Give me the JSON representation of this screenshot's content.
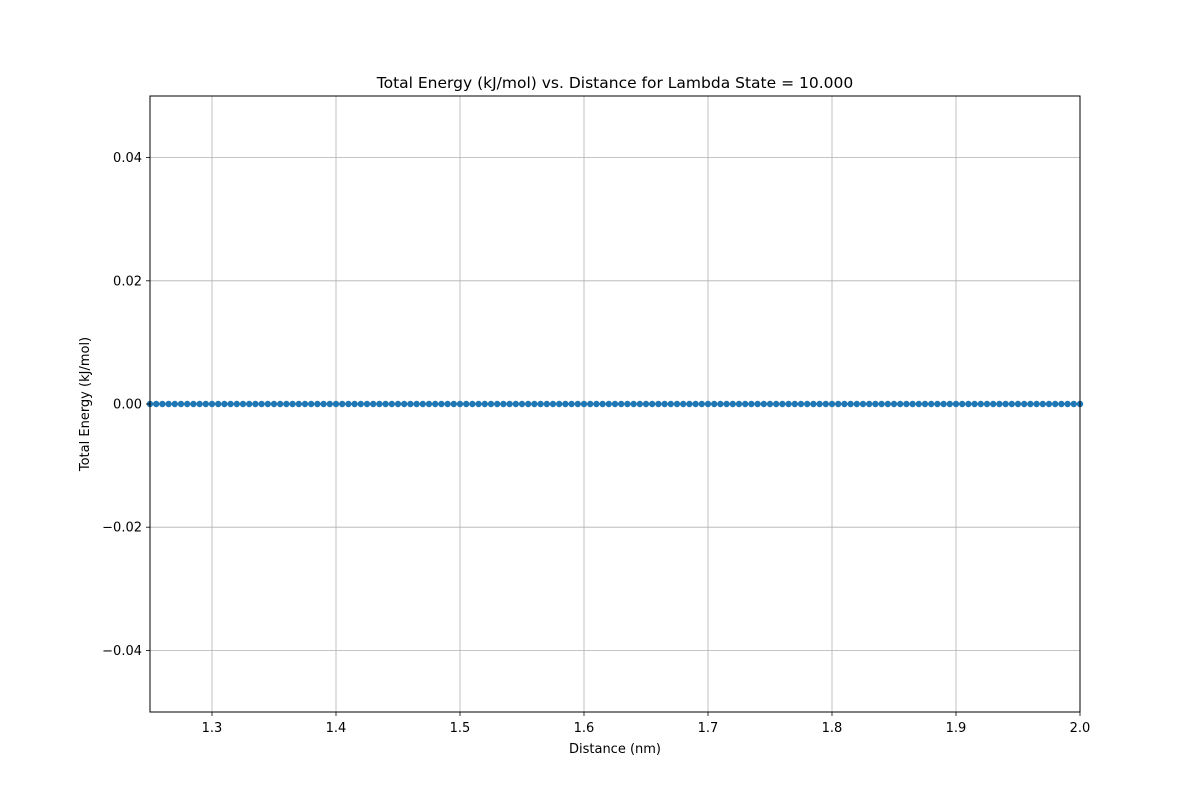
{
  "chart_data": {
    "type": "line",
    "title": "Total Energy (kJ/mol) vs. Distance for Lambda State = 10.000",
    "xlabel": "Distance (nm)",
    "ylabel": "Total Energy (kJ/mol)",
    "xlim": [
      1.25,
      2.0
    ],
    "ylim": [
      -0.05,
      0.05
    ],
    "xticks": [
      1.3,
      1.4,
      1.5,
      1.6,
      1.7,
      1.8,
      1.9,
      2.0
    ],
    "xtick_labels": [
      "1.3",
      "1.4",
      "1.5",
      "1.6",
      "1.7",
      "1.8",
      "1.9",
      "2.0"
    ],
    "yticks": [
      -0.04,
      -0.02,
      0.0,
      0.02,
      0.04
    ],
    "ytick_labels": [
      "−0.04",
      "−0.02",
      "0.00",
      "0.02",
      "0.04"
    ],
    "grid": true,
    "series": [
      {
        "color": "#1f77b4",
        "marker": "o",
        "x_start": 1.25,
        "x_end": 2.0,
        "x_step": 0.005,
        "y": 0.0
      }
    ]
  }
}
